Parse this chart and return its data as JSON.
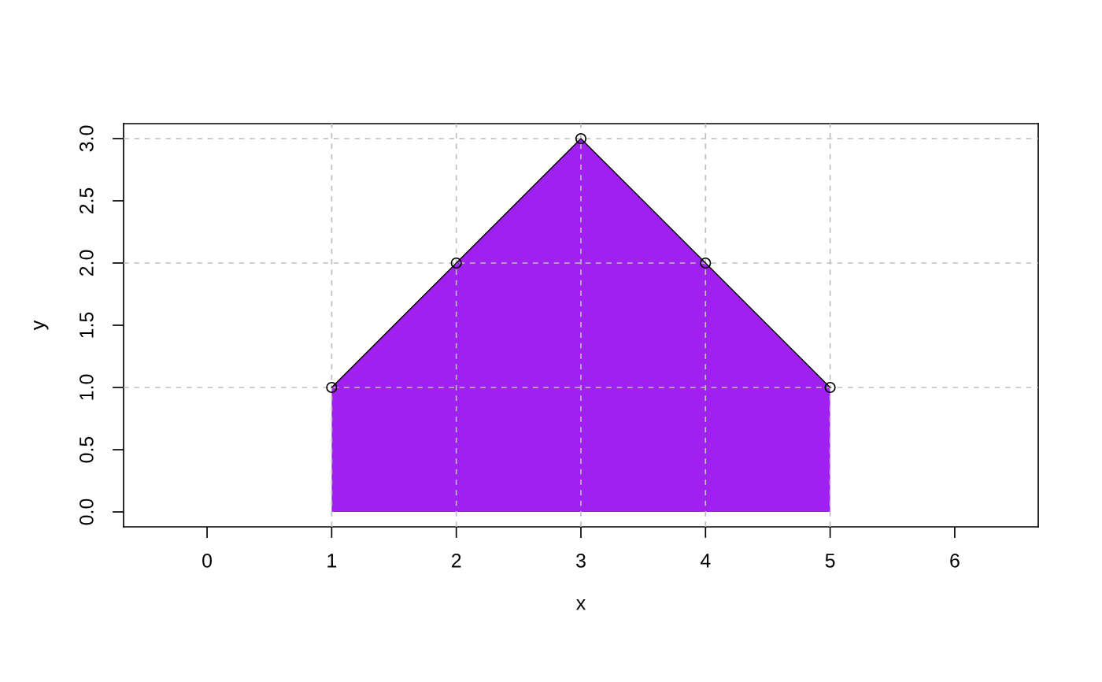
{
  "chart_data": {
    "type": "area",
    "xlabel": "x",
    "ylabel": "y",
    "x": [
      1,
      2,
      3,
      4,
      5
    ],
    "series": [
      {
        "color": "#a020f0",
        "values": [
          1,
          2,
          3,
          2,
          1
        ]
      }
    ],
    "marker": "circle",
    "line_style": "solid",
    "xlim": [
      -0.67,
      6.67
    ],
    "ylim": [
      -0.12,
      3.12
    ],
    "xticks": [
      0,
      1,
      2,
      3,
      4,
      5,
      6
    ],
    "yticks": [
      {
        "value": 0,
        "label": "0.0"
      },
      {
        "value": 0.5,
        "label": "0.5"
      },
      {
        "value": 1,
        "label": "1.0"
      },
      {
        "value": 1.5,
        "label": "1.5"
      },
      {
        "value": 2,
        "label": "2.0"
      },
      {
        "value": 2.5,
        "label": "2.5"
      },
      {
        "value": 3,
        "label": "3.0"
      }
    ],
    "ref_lines": [
      {
        "axis": "x",
        "value": 1,
        "color": "#bebebe",
        "line_style": "dashed"
      },
      {
        "axis": "x",
        "value": 2,
        "color": "#bebebe",
        "line_style": "dashed"
      },
      {
        "axis": "x",
        "value": 3,
        "color": "#bebebe",
        "line_style": "dashed"
      },
      {
        "axis": "x",
        "value": 4,
        "color": "#bebebe",
        "line_style": "dashed"
      },
      {
        "axis": "x",
        "value": 5,
        "color": "#bebebe",
        "line_style": "dashed"
      },
      {
        "axis": "y",
        "value": 1,
        "color": "#bebebe",
        "line_style": "dashed"
      },
      {
        "axis": "y",
        "value": 2,
        "color": "#bebebe",
        "line_style": "dashed"
      },
      {
        "axis": "y",
        "value": 3,
        "color": "#bebebe",
        "line_style": "dashed"
      }
    ]
  }
}
